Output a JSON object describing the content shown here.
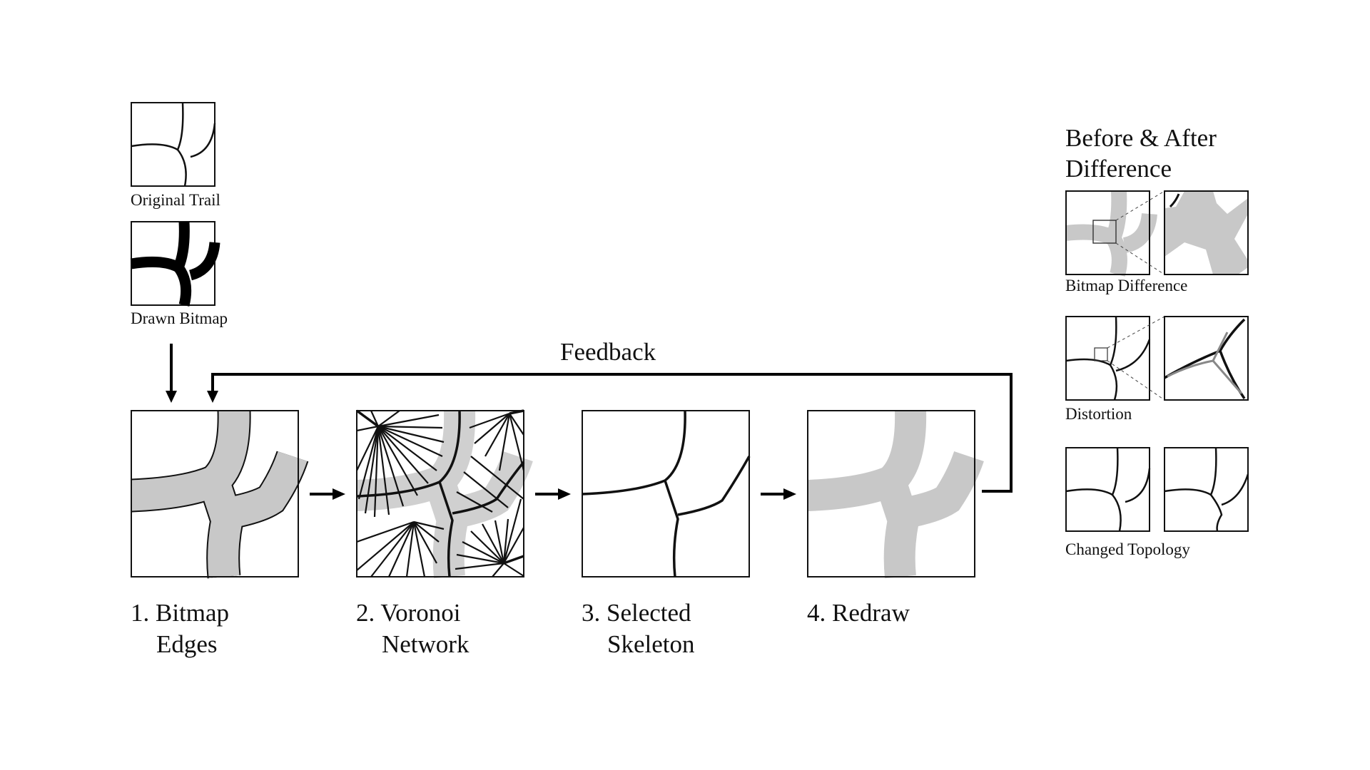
{
  "inputs": {
    "original_trail": "Original Trail",
    "drawn_bitmap": "Drawn Bitmap"
  },
  "feedback_label": "Feedback",
  "steps": [
    {
      "line1": "1. Bitmap",
      "line2": "Edges"
    },
    {
      "line1": "2. Voronoi",
      "line2": "Network"
    },
    {
      "line1": "3. Selected",
      "line2": "Skeleton"
    },
    {
      "line1": "4. Redraw",
      "line2": ""
    }
  ],
  "comparison": {
    "title_line1": "Before & After",
    "title_line2": "Difference",
    "rows": [
      {
        "label": "Bitmap Difference"
      },
      {
        "label": "Distortion"
      },
      {
        "label": "Changed Topology"
      }
    ]
  },
  "colors": {
    "stroke": "#111111",
    "trail_gray": "#c8c8c8",
    "diff_gray": "#888888"
  }
}
